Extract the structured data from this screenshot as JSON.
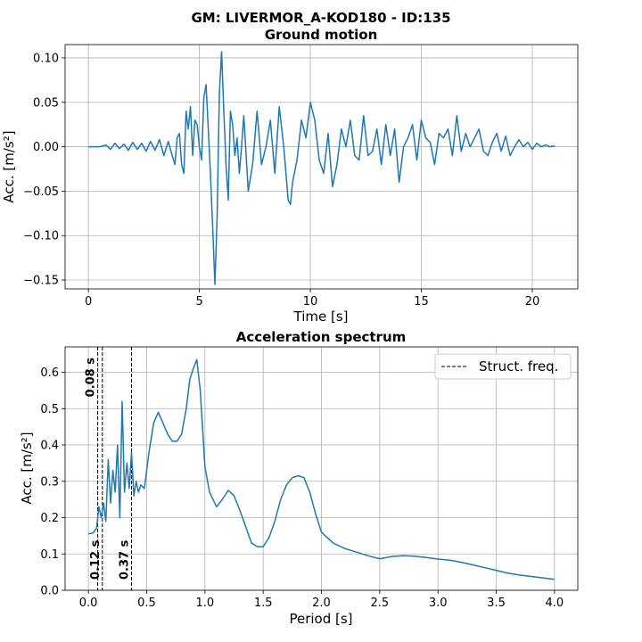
{
  "suptitle": "GM: LIVERMOR_A-KOD180 - ID:135",
  "chart_data": [
    {
      "type": "line",
      "title": "Ground motion",
      "xlabel": "Time [s]",
      "ylabel": "Acc. [m/s²]",
      "xlim": [
        -1.05,
        22.05
      ],
      "ylim": [
        -0.16,
        0.115
      ],
      "xticks": [
        0,
        5,
        10,
        15,
        20
      ],
      "xtick_labels": [
        "0",
        "5",
        "10",
        "15",
        "20"
      ],
      "yticks": [
        -0.15,
        -0.1,
        -0.05,
        0.0,
        0.05,
        0.1
      ],
      "ytick_labels": [
        "−0.15",
        "−0.10",
        "−0.05",
        "0.00",
        "0.05",
        "0.10"
      ],
      "grid": true,
      "series": [
        {
          "x": [
            0,
            0.5,
            0.8,
            1.0,
            1.2,
            1.4,
            1.6,
            1.8,
            2.0,
            2.2,
            2.4,
            2.6,
            2.8,
            3.0,
            3.2,
            3.4,
            3.6,
            3.8,
            3.9,
            4.0,
            4.1,
            4.2,
            4.3,
            4.4,
            4.5,
            4.6,
            4.7,
            4.8,
            4.9,
            5.0,
            5.1,
            5.2,
            5.3,
            5.4,
            5.5,
            5.6,
            5.7,
            5.8,
            5.9,
            6.0,
            6.1,
            6.2,
            6.3,
            6.4,
            6.5,
            6.6,
            6.7,
            6.8,
            6.9,
            7.0,
            7.2,
            7.4,
            7.6,
            7.8,
            8.0,
            8.2,
            8.4,
            8.6,
            8.8,
            9.0,
            9.1,
            9.2,
            9.4,
            9.6,
            9.8,
            10.0,
            10.2,
            10.4,
            10.6,
            10.8,
            11.0,
            11.2,
            11.4,
            11.6,
            11.8,
            12.0,
            12.2,
            12.4,
            12.6,
            12.8,
            13.0,
            13.2,
            13.4,
            13.6,
            13.8,
            14.0,
            14.2,
            14.4,
            14.6,
            14.8,
            15.0,
            15.2,
            15.4,
            15.6,
            15.8,
            16.0,
            16.2,
            16.4,
            16.6,
            16.8,
            17.0,
            17.2,
            17.4,
            17.6,
            17.8,
            18.0,
            18.2,
            18.4,
            18.6,
            18.8,
            19.0,
            19.2,
            19.4,
            19.6,
            19.8,
            20.0,
            20.2,
            20.4,
            20.6,
            20.8,
            21.0
          ],
          "y": [
            0,
            0,
            0.002,
            -0.003,
            0.004,
            -0.002,
            0.003,
            -0.004,
            0.005,
            -0.003,
            0.004,
            -0.005,
            0.006,
            -0.004,
            0.008,
            -0.01,
            0.006,
            -0.012,
            -0.02,
            0.01,
            0.015,
            -0.02,
            -0.03,
            0.04,
            0.02,
            0.045,
            -0.01,
            0.03,
            0.025,
            0.0,
            -0.015,
            0.055,
            0.07,
            0.02,
            -0.03,
            -0.09,
            -0.155,
            -0.08,
            0.06,
            0.107,
            0.04,
            -0.02,
            -0.06,
            0.04,
            0.025,
            -0.01,
            0.01,
            -0.03,
            0.0,
            0.035,
            -0.05,
            -0.02,
            0.04,
            -0.02,
            0.0,
            0.03,
            -0.03,
            0.045,
            0.0,
            -0.06,
            -0.065,
            -0.04,
            -0.015,
            0.03,
            0.01,
            0.05,
            0.03,
            -0.015,
            -0.03,
            0.015,
            -0.045,
            -0.02,
            0.02,
            0.0,
            0.03,
            -0.01,
            -0.015,
            0.035,
            -0.01,
            -0.005,
            0.02,
            -0.02,
            0.025,
            -0.01,
            0.02,
            -0.04,
            0.0,
            0.01,
            0.025,
            -0.015,
            0.03,
            0.01,
            0.005,
            -0.02,
            0.015,
            0.01,
            0.02,
            -0.01,
            0.035,
            -0.005,
            0.015,
            0.0,
            0.01,
            0.02,
            -0.005,
            -0.01,
            0.005,
            0.015,
            -0.005,
            0.012,
            -0.01,
            0.0,
            0.008,
            0.0,
            0.005,
            -0.003,
            0.004,
            0.0,
            0.002,
            0.0,
            0.001
          ]
        }
      ]
    },
    {
      "type": "line",
      "title": "Acceleration spectrum",
      "xlabel": "Period [s]",
      "ylabel": "Acc. [m/s²]",
      "xlim": [
        -0.2,
        4.2
      ],
      "ylim": [
        0,
        0.67
      ],
      "xticks": [
        0.0,
        0.5,
        1.0,
        1.5,
        2.0,
        2.5,
        3.0,
        3.5,
        4.0
      ],
      "xtick_labels": [
        "0.0",
        "0.5",
        "1.0",
        "1.5",
        "2.0",
        "2.5",
        "3.0",
        "3.5",
        "4.0"
      ],
      "yticks": [
        0.0,
        0.1,
        0.2,
        0.3,
        0.4,
        0.5,
        0.6
      ],
      "ytick_labels": [
        "0.0",
        "0.1",
        "0.2",
        "0.3",
        "0.4",
        "0.5",
        "0.6"
      ],
      "grid": true,
      "legend": {
        "entry": "Struct. freq.",
        "placement": "top-right"
      },
      "vlines": [
        {
          "x": 0.08,
          "label": "0.08 s",
          "label_pos": "top"
        },
        {
          "x": 0.12,
          "label": "0.12 s",
          "label_pos": "bottom"
        },
        {
          "x": 0.37,
          "label": "0.37 s",
          "label_pos": "bottom"
        }
      ],
      "series": [
        {
          "x": [
            0.0,
            0.04,
            0.07,
            0.09,
            0.11,
            0.13,
            0.15,
            0.17,
            0.19,
            0.21,
            0.23,
            0.25,
            0.27,
            0.29,
            0.31,
            0.33,
            0.35,
            0.37,
            0.39,
            0.41,
            0.43,
            0.45,
            0.48,
            0.52,
            0.56,
            0.6,
            0.64,
            0.68,
            0.72,
            0.76,
            0.8,
            0.84,
            0.87,
            0.9,
            0.93,
            0.96,
            1.0,
            1.04,
            1.1,
            1.15,
            1.2,
            1.25,
            1.3,
            1.35,
            1.4,
            1.45,
            1.5,
            1.55,
            1.6,
            1.65,
            1.7,
            1.75,
            1.8,
            1.85,
            1.9,
            1.95,
            2.0,
            2.05,
            2.1,
            2.2,
            2.3,
            2.4,
            2.5,
            2.56,
            2.6,
            2.7,
            2.8,
            2.9,
            3.0,
            3.1,
            3.2,
            3.3,
            3.4,
            3.5,
            3.6,
            3.7,
            3.8,
            3.9,
            4.0
          ],
          "y": [
            0.155,
            0.158,
            0.17,
            0.23,
            0.2,
            0.24,
            0.19,
            0.36,
            0.24,
            0.33,
            0.27,
            0.4,
            0.2,
            0.52,
            0.27,
            0.35,
            0.28,
            0.38,
            0.26,
            0.3,
            0.27,
            0.29,
            0.28,
            0.38,
            0.46,
            0.49,
            0.46,
            0.43,
            0.41,
            0.41,
            0.43,
            0.5,
            0.58,
            0.61,
            0.635,
            0.55,
            0.34,
            0.27,
            0.23,
            0.25,
            0.275,
            0.26,
            0.22,
            0.175,
            0.13,
            0.12,
            0.12,
            0.145,
            0.19,
            0.25,
            0.29,
            0.31,
            0.315,
            0.31,
            0.27,
            0.21,
            0.16,
            0.145,
            0.13,
            0.115,
            0.105,
            0.095,
            0.087,
            0.09,
            0.093,
            0.095,
            0.094,
            0.09,
            0.086,
            0.083,
            0.077,
            0.07,
            0.062,
            0.055,
            0.047,
            0.042,
            0.038,
            0.034,
            0.03
          ]
        }
      ]
    }
  ]
}
